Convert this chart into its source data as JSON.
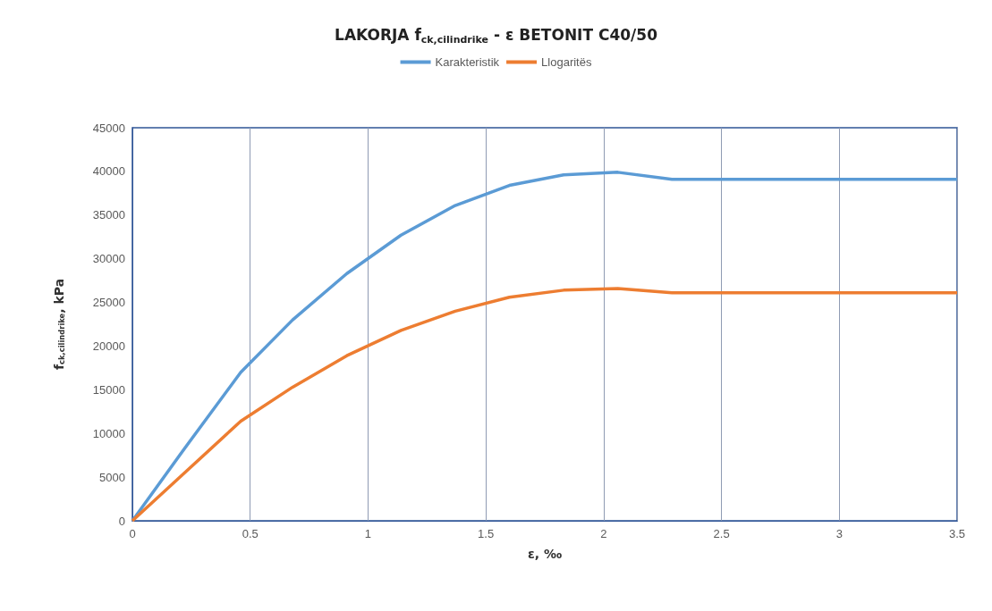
{
  "chart_data": {
    "type": "line",
    "title": "LAKORJA f$_{ck,cilindrike}$ - ε BETONIT C40/50",
    "xlabel": "ε, ‰",
    "ylabel": "f$_{ck,cilindrike}$, kPa",
    "x": [
      0,
      0.23,
      0.46,
      0.68,
      0.91,
      1.14,
      1.37,
      1.6,
      1.83,
      2.06,
      2.29,
      2.5,
      3,
      3.5
    ],
    "series": [
      {
        "name": "Karakteristik",
        "color": "#5b9bd5",
        "values": [
          0,
          8600,
          17000,
          23000,
          28300,
          32700,
          36100,
          38400,
          39600,
          39900,
          39100,
          39100,
          39100,
          39100
        ]
      },
      {
        "name": "Llogaritës",
        "color": "#ed7d31",
        "values": [
          0,
          5700,
          11400,
          15300,
          18900,
          21800,
          24000,
          25600,
          26400,
          26600,
          26100,
          26100,
          26100,
          26100
        ]
      }
    ],
    "xlim": [
      0,
      3.5
    ],
    "xticks": [
      0,
      0.5,
      1,
      1.5,
      2,
      2.5,
      3,
      3.5
    ],
    "ylim": [
      0,
      45000
    ],
    "yticks": [
      0,
      5000,
      10000,
      15000,
      20000,
      25000,
      30000,
      35000,
      40000,
      45000
    ],
    "grid": "x",
    "legend": "top",
    "marker": "none",
    "line_style": "solid"
  }
}
